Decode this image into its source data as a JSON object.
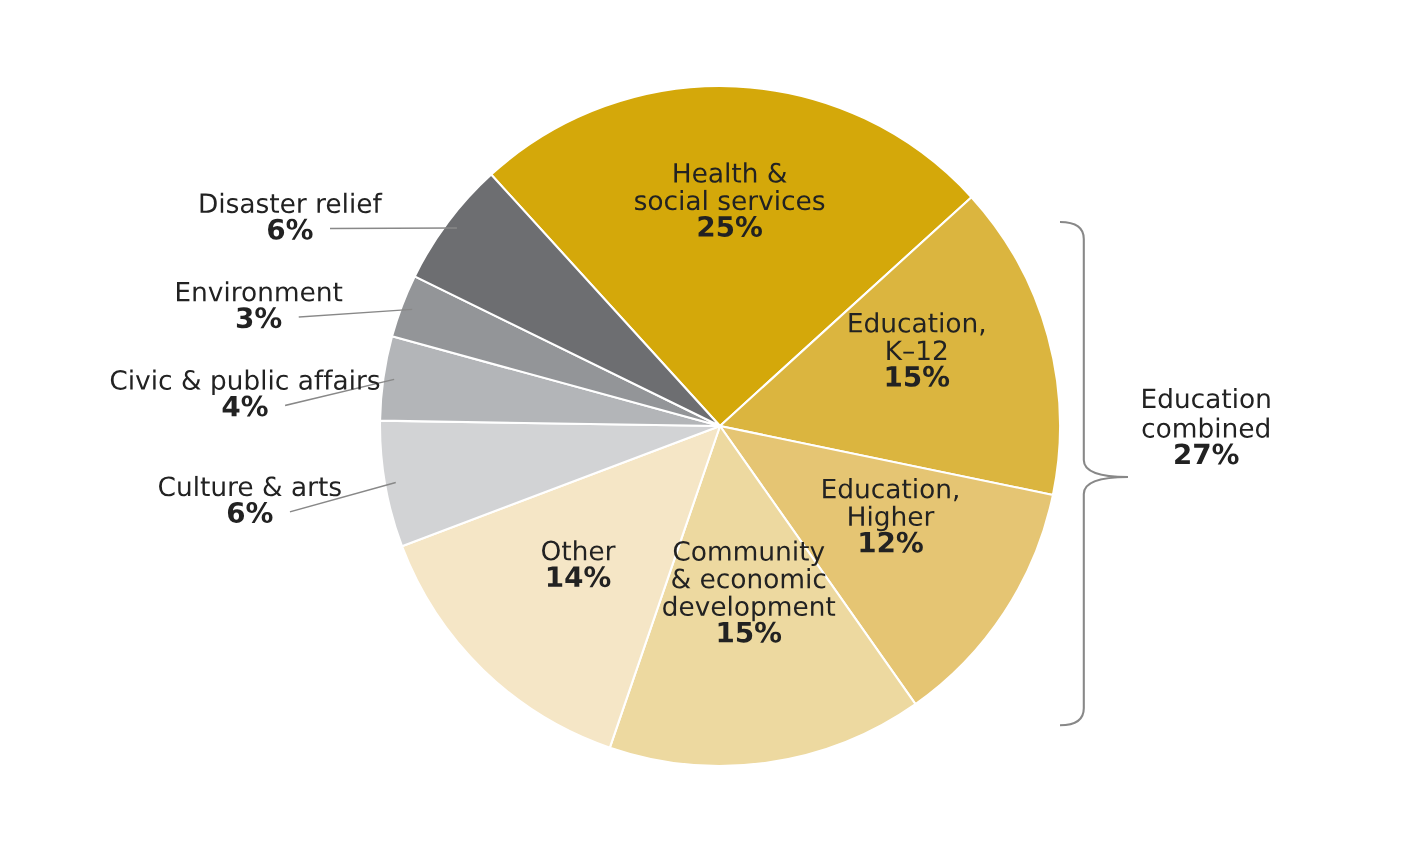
{
  "chart_data": {
    "type": "pie",
    "categories": [
      "Health &\nsocial services",
      "Education,\nK–12",
      "Education,\nHigher",
      "Community\n& economic\ndevelopment",
      "Other",
      "Culture & arts",
      "Civic & public affairs",
      "Environment",
      "Disaster relief"
    ],
    "values": [
      25,
      15,
      12,
      15,
      14,
      6,
      4,
      3,
      6
    ],
    "value_labels": [
      "25%",
      "15%",
      "12%",
      "15%",
      "14%",
      "6%",
      "4%",
      "3%",
      "6%"
    ],
    "colors": [
      "#d4a80a",
      "#dbb53f",
      "#e5c573",
      "#edd9a0",
      "#f5e6c6",
      "#d2d3d5",
      "#b3b5b8",
      "#939598",
      "#6d6e71"
    ],
    "annotations": [
      "Education\ncombined\n27%"
    ],
    "legend": false
  }
}
